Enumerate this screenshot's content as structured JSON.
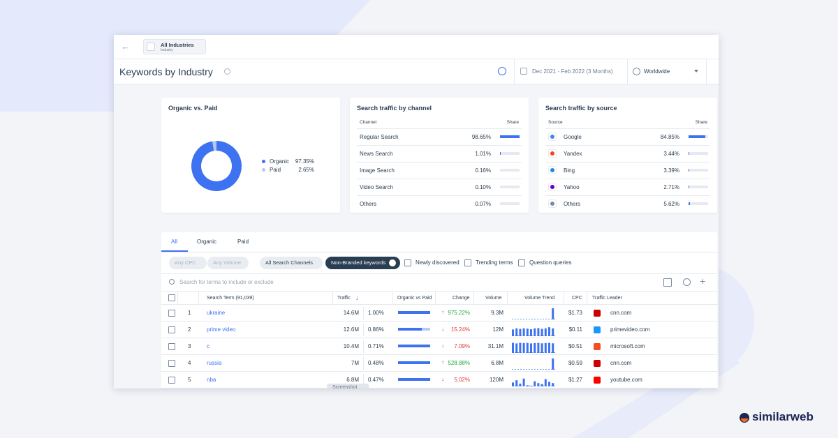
{
  "header": {
    "industry": "All Industries",
    "industry_sub": "Industry",
    "title": "Keywords by Industry",
    "date_range": "Dec 2021 - Feb 2022 (3 Months)",
    "region": "Worldwide"
  },
  "organic_paid": {
    "title": "Organic vs. Paid",
    "series": [
      {
        "name": "Organic",
        "value": 97.35,
        "label": "97.35%",
        "color": "#3d72f0"
      },
      {
        "name": "Paid",
        "value": 2.65,
        "label": "2.65%",
        "color": "#b3c9f6"
      }
    ]
  },
  "channels": {
    "title": "Search traffic by channel",
    "col_name": "Channel",
    "col_share": "Share",
    "rows": [
      {
        "name": "Regular Search",
        "share": {
          "value": 98.65,
          "label": "98.65%"
        }
      },
      {
        "name": "News Search",
        "share": {
          "value": 1.01,
          "label": "1.01%"
        }
      },
      {
        "name": "Image Search",
        "share": {
          "value": 0.16,
          "label": "0.16%"
        }
      },
      {
        "name": "Video Search",
        "share": {
          "value": 0.1,
          "label": "0.10%"
        }
      },
      {
        "name": "Others",
        "share": {
          "value": 0.07,
          "label": "0.07%"
        }
      }
    ]
  },
  "sources": {
    "title": "Search traffic by source",
    "col_name": "Source",
    "col_share": "Share",
    "rows": [
      {
        "name": "Google",
        "icon_color": "#4285f4",
        "share": {
          "value": 84.85,
          "label": "84.85%"
        }
      },
      {
        "name": "Yandex",
        "icon_color": "#fc3f1d",
        "share": {
          "value": 3.44,
          "label": "3.44%"
        }
      },
      {
        "name": "Bing",
        "icon_color": "#1e88e5",
        "share": {
          "value": 3.39,
          "label": "3.39%"
        }
      },
      {
        "name": "Yahoo",
        "icon_color": "#6001d2",
        "share": {
          "value": 2.71,
          "label": "2.71%"
        }
      },
      {
        "name": "Others",
        "icon_color": "#7b8aa0",
        "share": {
          "value": 5.62,
          "label": "5.62%"
        }
      }
    ]
  },
  "tabs": [
    "All",
    "Organic",
    "Paid"
  ],
  "filters": {
    "chips": [
      "Any CPC",
      "Any Volume",
      "All Search Channels"
    ],
    "active": "Non-Branded keywords",
    "checkboxes": [
      "Newly discovered",
      "Trending terms",
      "Question queries"
    ]
  },
  "search_placeholder": "Search for terms to include or exclude",
  "table": {
    "columns": [
      "Search Term (91,039)",
      "Traffic",
      "Organic vs Paid",
      "Change",
      "Volume",
      "Volume Trend",
      "CPC",
      "Traffic Leader"
    ],
    "rows": [
      {
        "rank": "1",
        "term": "ukraine",
        "traffic": "14.6M",
        "share": "1.00%",
        "organic_share": 100,
        "change": {
          "value": 975.22,
          "label": "975.22%"
        },
        "volume": "9.3M",
        "trend": [
          0,
          0,
          0,
          0,
          0,
          0,
          0,
          0,
          0,
          0,
          0,
          100
        ],
        "cpc": "$1.73",
        "leader": "cnn.com",
        "leader_color": "#cc0000"
      },
      {
        "rank": "2",
        "term": "prime video",
        "traffic": "12.6M",
        "share": "0.86%",
        "organic_share": 74,
        "change": {
          "value": -15.24,
          "label": "15.24%"
        },
        "volume": "12M",
        "trend": [
          60,
          70,
          65,
          70,
          68,
          62,
          70,
          72,
          66,
          70,
          80,
          70
        ],
        "cpc": "$0.11",
        "leader": "primevideo.com",
        "leader_color": "#1a98ff"
      },
      {
        "rank": "3",
        "term": "c",
        "traffic": "10.4M",
        "share": "0.71%",
        "organic_share": 100,
        "change": {
          "value": -7.09,
          "label": "7.09%"
        },
        "volume": "31.1M",
        "trend": [
          90,
          85,
          90,
          88,
          90,
          85,
          88,
          90,
          86,
          88,
          90,
          86
        ],
        "cpc": "$0.51",
        "leader": "microsoft.com",
        "leader_color": "#f25022"
      },
      {
        "rank": "4",
        "term": "russia",
        "traffic": "7M",
        "share": "0.48%",
        "organic_share": 100,
        "change": {
          "value": 528.88,
          "label": "528.88%"
        },
        "volume": "6.8M",
        "trend": [
          0,
          0,
          0,
          0,
          0,
          0,
          0,
          0,
          0,
          0,
          0,
          100
        ],
        "cpc": "$0.59",
        "leader": "cnn.com",
        "leader_color": "#cc0000"
      },
      {
        "rank": "5",
        "term": "nba",
        "traffic": "6.8M",
        "share": "0.47%",
        "organic_share": 100,
        "change": {
          "value": -5.02,
          "label": "5.02%"
        },
        "volume": "120M",
        "trend": [
          35,
          55,
          25,
          70,
          10,
          5,
          45,
          30,
          20,
          65,
          40,
          30
        ],
        "cpc": "$1.27",
        "leader": "youtube.com",
        "leader_color": "#ff0000"
      }
    ]
  },
  "screenshot_tab": "Screenshot",
  "brand": "similarweb"
}
